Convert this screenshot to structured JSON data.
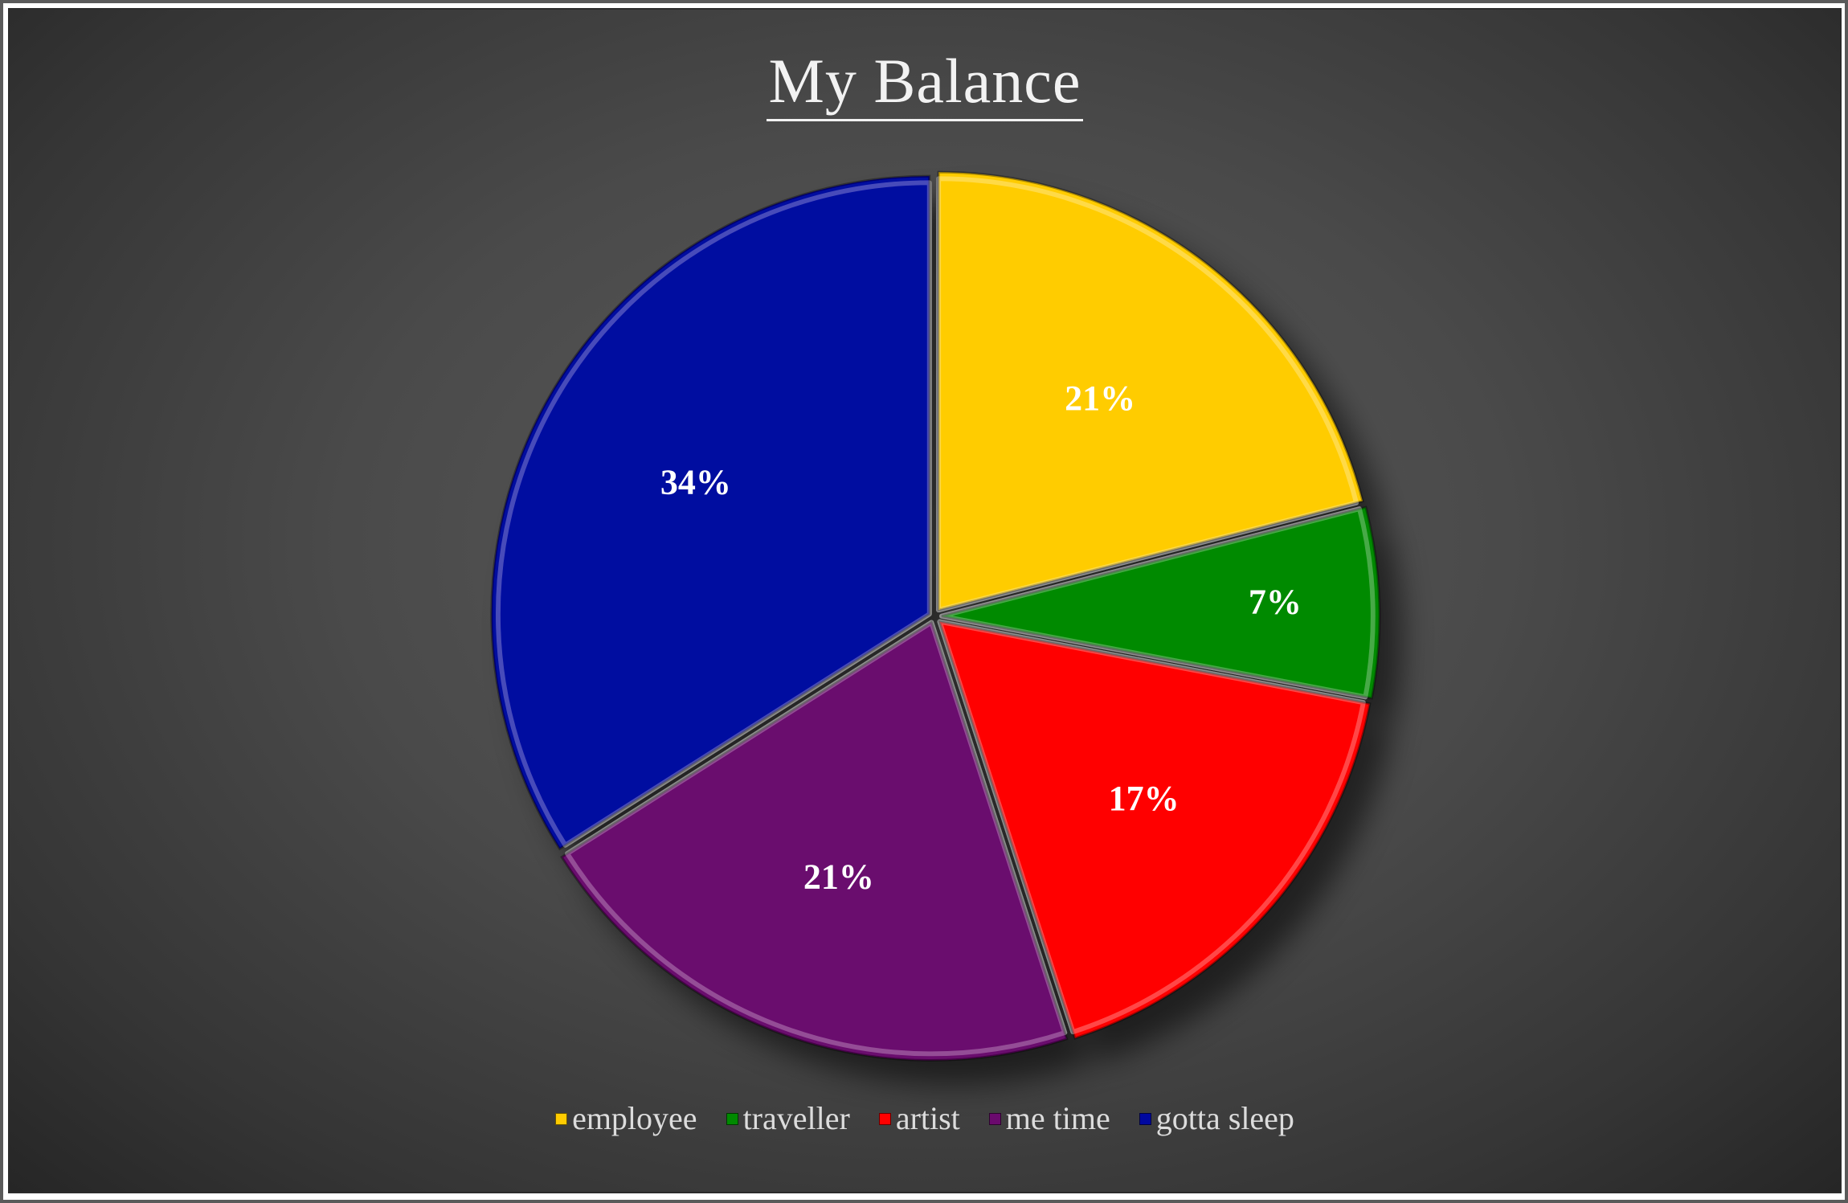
{
  "chart_data": {
    "type": "pie",
    "title": "My Balance",
    "categories": [
      "employee",
      "traveller",
      "artist",
      "me time",
      "gotta sleep"
    ],
    "values": [
      21,
      7,
      17,
      21,
      34
    ],
    "labels": [
      "21%",
      "7%",
      "17%",
      "21%",
      "34%"
    ],
    "colors": [
      "#FFCC00",
      "#008A00",
      "#FF0000",
      "#6B0A6E",
      "#0008A0"
    ],
    "legend_position": "bottom"
  }
}
